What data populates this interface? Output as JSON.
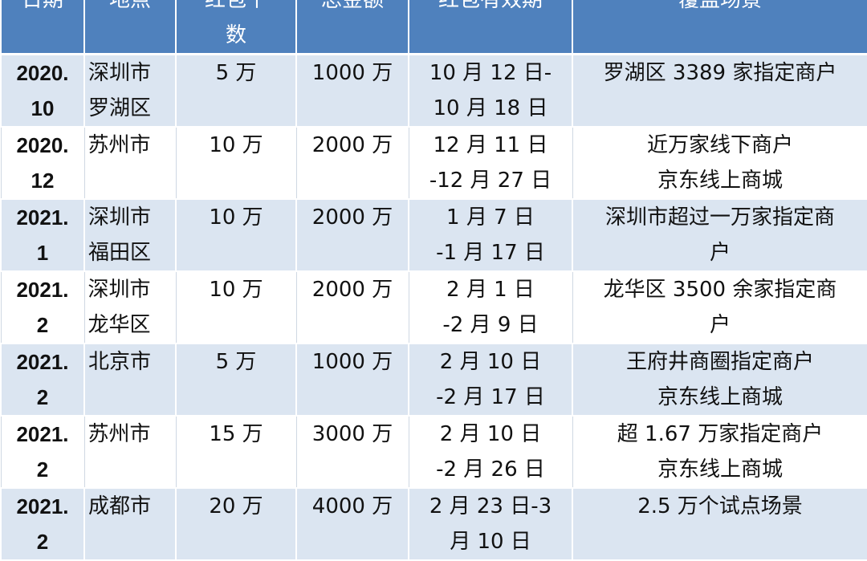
{
  "headers": [
    "日期",
    "地点",
    "红包个\n数",
    "总金额",
    "红包有效期",
    "覆盖场景"
  ],
  "rows": [
    {
      "date": "2020.\n10",
      "location": "深圳市\n罗湖区",
      "count": "5 万",
      "amount": "1000 万",
      "period": "10 月 12 日-\n10 月 18 日",
      "scene": "罗湖区 3389 家指定商户"
    },
    {
      "date": "2020.\n12",
      "location": "苏州市",
      "count": "10 万",
      "amount": "2000 万",
      "period": "12 月 11 日\n-12 月 27 日",
      "scene": "近万家线下商户\n京东线上商城"
    },
    {
      "date": "2021.\n1",
      "location": "深圳市\n福田区",
      "count": "10 万",
      "amount": "2000 万",
      "period": "1 月 7 日\n-1 月 17 日",
      "scene": "深圳市超过一万家指定商\n户"
    },
    {
      "date": "2021.\n2",
      "location": "深圳市\n龙华区",
      "count": "10 万",
      "amount": "2000 万",
      "period": "2 月 1 日\n-2 月 9 日",
      "scene": "龙华区 3500 余家指定商\n户"
    },
    {
      "date": "2021.\n2",
      "location": "北京市",
      "count": "5 万",
      "amount": "1000 万",
      "period": "2 月 10 日\n-2 月 17 日",
      "scene": "王府井商圈指定商户\n京东线上商城"
    },
    {
      "date": "2021.\n2",
      "location": "苏州市",
      "count": "15 万",
      "amount": "3000 万",
      "period": "2 月 10 日\n-2 月 26 日",
      "scene": "超 1.67 万家指定商户\n京东线上商城"
    },
    {
      "date": "2021.\n2",
      "location": "成都市",
      "count": "20 万",
      "amount": "4000 万",
      "period": "2 月 23 日-3\n月 10 日",
      "scene": "2.5 万个试点场景"
    }
  ],
  "colors": {
    "header": "#4f81bd",
    "row_alt": "#dbe5f1"
  }
}
